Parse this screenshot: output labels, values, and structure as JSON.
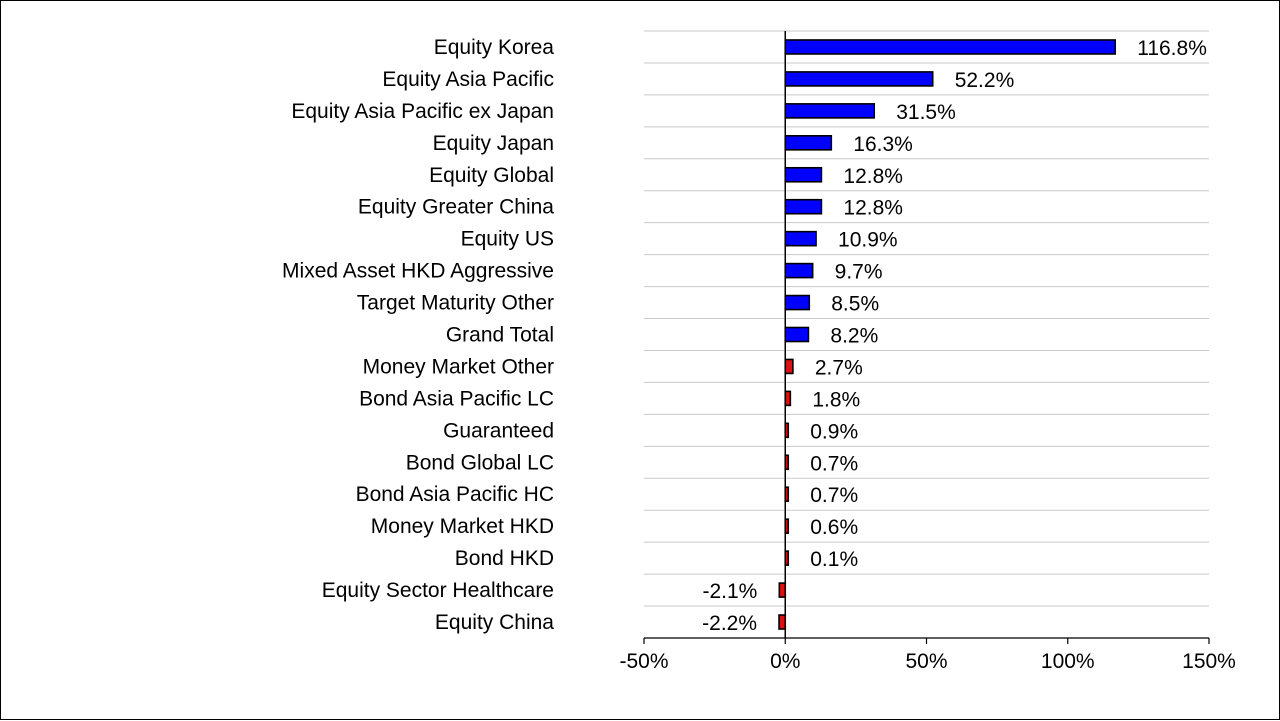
{
  "chart_data": {
    "type": "bar",
    "orientation": "horizontal",
    "title": "",
    "xlabel": "",
    "ylabel": "",
    "xlim": [
      -50,
      150
    ],
    "x_ticks": [
      -50,
      0,
      50,
      100,
      150
    ],
    "x_tick_labels": [
      "-50%",
      "0%",
      "50%",
      "100%",
      "150%"
    ],
    "grid": "horizontal",
    "legend": "none",
    "colors": {
      "large": "#0000FF",
      "small": "#DD1111",
      "border": "#000000"
    },
    "categories": [
      "Equity Korea",
      "Equity Asia Pacific",
      "Equity Asia Pacific ex Japan",
      "Equity Japan",
      "Equity Global",
      "Equity Greater China",
      "Equity US",
      "Mixed Asset HKD Aggressive",
      "Target Maturity Other",
      "Grand Total",
      "Money Market Other",
      "Bond Asia Pacific LC",
      "Guaranteed",
      "Bond Global LC",
      "Bond Asia Pacific HC",
      "Money Market HKD",
      "Bond HKD",
      "Equity Sector Healthcare",
      "Equity China"
    ],
    "values": [
      116.8,
      52.2,
      31.5,
      16.3,
      12.8,
      12.8,
      10.9,
      9.7,
      8.5,
      8.2,
      2.7,
      1.8,
      0.9,
      0.7,
      0.7,
      0.6,
      0.1,
      -2.1,
      -2.2
    ],
    "data_labels": [
      "116.8%",
      "52.2%",
      "31.5%",
      "16.3%",
      "12.8%",
      "12.8%",
      "10.9%",
      "9.7%",
      "8.5%",
      "8.2%",
      "2.7%",
      "1.8%",
      "0.9%",
      "0.7%",
      "0.7%",
      "0.6%",
      "0.1%",
      "-2.1%",
      "-2.2%"
    ],
    "bar_color_class": [
      "large",
      "large",
      "large",
      "large",
      "large",
      "large",
      "large",
      "large",
      "large",
      "large",
      "small",
      "small",
      "small",
      "small",
      "small",
      "small",
      "small",
      "small",
      "small"
    ]
  }
}
